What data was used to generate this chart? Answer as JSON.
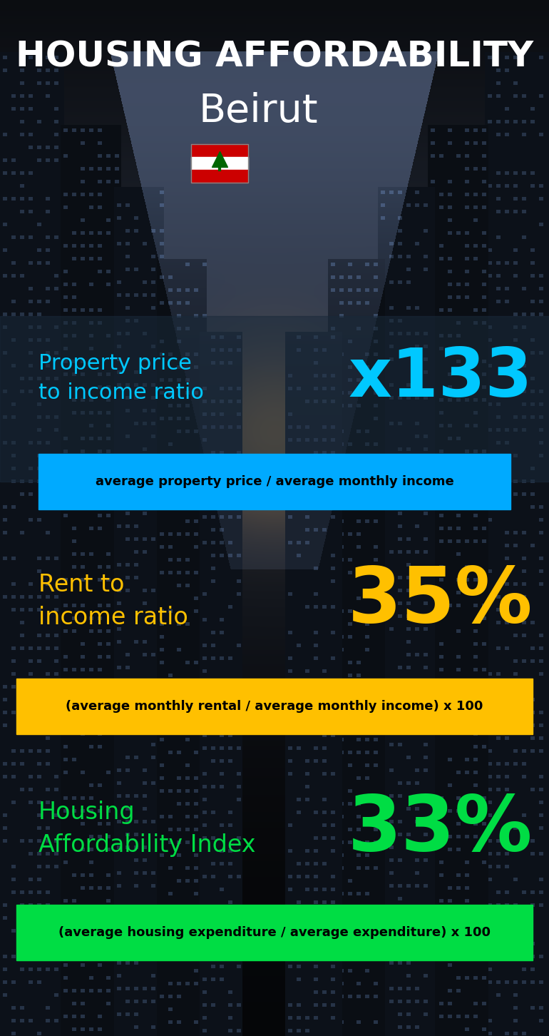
{
  "title_line1": "HOUSING AFFORDABILITY",
  "title_line2": "Beirut",
  "section1_label": "Property price\nto income ratio",
  "section1_value": "x133",
  "section1_label_color": "#00c8ff",
  "section1_value_color": "#00c8ff",
  "section1_banner": "average property price / average monthly income",
  "section1_banner_bg": "#00aaff",
  "section1_banner_color": "#000000",
  "section2_label": "Rent to\nincome ratio",
  "section2_value": "35%",
  "section2_label_color": "#ffc000",
  "section2_value_color": "#ffc000",
  "section2_banner": "(average monthly rental / average monthly income) x 100",
  "section2_banner_bg": "#ffc000",
  "section2_banner_color": "#000000",
  "section3_label": "Housing\nAffordability Index",
  "section3_value": "33%",
  "section3_label_color": "#00dd44",
  "section3_value_color": "#00dd44",
  "section3_banner": "(average housing expenditure / average expenditure) x 100",
  "section3_banner_bg": "#00dd44",
  "section3_banner_color": "#000000",
  "bg_color": "#0a1420",
  "title_color": "#ffffff",
  "city_color": "#ffffff",
  "fig_width": 7.7,
  "fig_height": 14.52,
  "dpi": 100
}
